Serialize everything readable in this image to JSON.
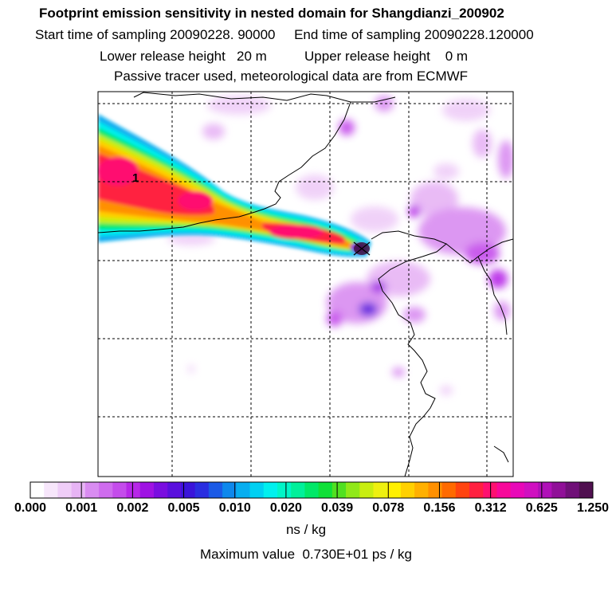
{
  "header": {
    "title": "Footprint emission sensitivity in nested domain for Shangdianzi_200902",
    "sampling": "Start time of sampling 20090228. 90000     End time of sampling 20090228.120000",
    "release": "Lower release height   20 m          Upper release height    0 m",
    "tracer": "Passive tracer used, meteorological data are from ECMWF"
  },
  "map": {
    "release_label": "1",
    "release_marker": "release-site-marker"
  },
  "colorbar": {
    "ticks": [
      "0.000",
      "0.001",
      "0.002",
      "0.005",
      "0.010",
      "0.020",
      "0.039",
      "0.078",
      "0.156",
      "0.312",
      "0.625",
      "1.250"
    ],
    "colors": [
      "#ffffff",
      "#f7e6fb",
      "#efcdf8",
      "#e7b4f5",
      "#d98cf1",
      "#cf6cee",
      "#c44ceb",
      "#b727e8",
      "#9f12e3",
      "#7a0ee0",
      "#5a10dd",
      "#3a14da",
      "#2a2ee0",
      "#1b5ae6",
      "#0e88ec",
      "#07aef0",
      "#00d0f2",
      "#00f0ee",
      "#00f5c8",
      "#00f09a",
      "#00e868",
      "#10e038",
      "#50e020",
      "#90e818",
      "#c8ee10",
      "#eef010",
      "#fff000",
      "#ffd000",
      "#ffb000",
      "#ff9000",
      "#ff6a00",
      "#ff4410",
      "#ff2040",
      "#ff1070",
      "#f8089a",
      "#e808b8",
      "#d010c0",
      "#b010b8",
      "#901098",
      "#701078",
      "#501050"
    ],
    "units": "ns / kg"
  },
  "footer": {
    "max_value": "Maximum value  0.730E+01 ps / kg"
  }
}
